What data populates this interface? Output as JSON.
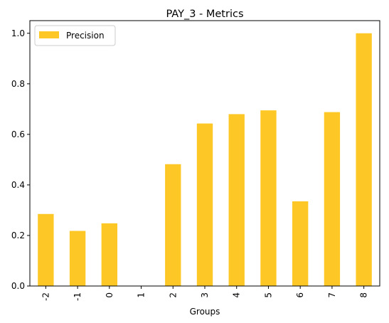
{
  "chart_data": {
    "type": "bar",
    "title": "PAY_3 - Metrics",
    "xlabel": "Groups",
    "ylabel": "",
    "categories": [
      "-2",
      "-1",
      "0",
      "1",
      "2",
      "3",
      "4",
      "5",
      "6",
      "7",
      "8"
    ],
    "series": [
      {
        "name": "Precision",
        "color": "#fdc826",
        "values": [
          0.285,
          0.218,
          0.248,
          0.0,
          0.482,
          0.643,
          0.68,
          0.695,
          0.335,
          0.688,
          1.0
        ]
      }
    ],
    "ylim": [
      0,
      1.05
    ],
    "yticks": [
      "0.0",
      "0.2",
      "0.4",
      "0.6",
      "0.8",
      "1.0"
    ],
    "grid": false,
    "legend_position": "top-left"
  }
}
